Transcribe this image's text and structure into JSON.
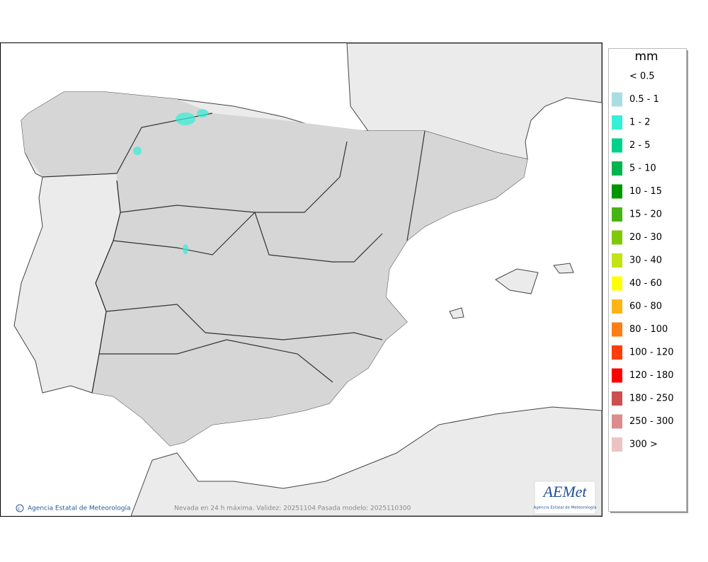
{
  "legend": {
    "title": "mm",
    "items": [
      {
        "label": "< 0.5",
        "color": "#ffffff"
      },
      {
        "label": "0.5 - 1",
        "color": "#aadde3"
      },
      {
        "label": "1 - 2",
        "color": "#33f0d7"
      },
      {
        "label": "2 - 5",
        "color": "#00d28c"
      },
      {
        "label": "5 - 10",
        "color": "#00b450"
      },
      {
        "label": "10 - 15",
        "color": "#009600"
      },
      {
        "label": "15 - 20",
        "color": "#46b414"
      },
      {
        "label": "20 - 30",
        "color": "#82c80a"
      },
      {
        "label": "30 - 40",
        "color": "#c3e314"
      },
      {
        "label": "40 - 60",
        "color": "#ffff00"
      },
      {
        "label": "60 - 80",
        "color": "#ffb414"
      },
      {
        "label": "80 - 100",
        "color": "#ff7d14"
      },
      {
        "label": "100 - 120",
        "color": "#ff3c0a"
      },
      {
        "label": "120 - 180",
        "color": "#ff0000"
      },
      {
        "label": "180 - 250",
        "color": "#cd5050"
      },
      {
        "label": "250 - 300",
        "color": "#dc8c8c"
      },
      {
        "label": "300 >",
        "color": "#ebc3c3"
      }
    ]
  },
  "footer": {
    "credit": "Agencia Estatal de Meteorología",
    "caption": "Nevada en 24 h máxima. Validez: 20251104 Pasada modelo: 2025110300"
  },
  "logo": {
    "name": "AEMet",
    "subtitle": "Agencia Estatal de Meteorología"
  }
}
